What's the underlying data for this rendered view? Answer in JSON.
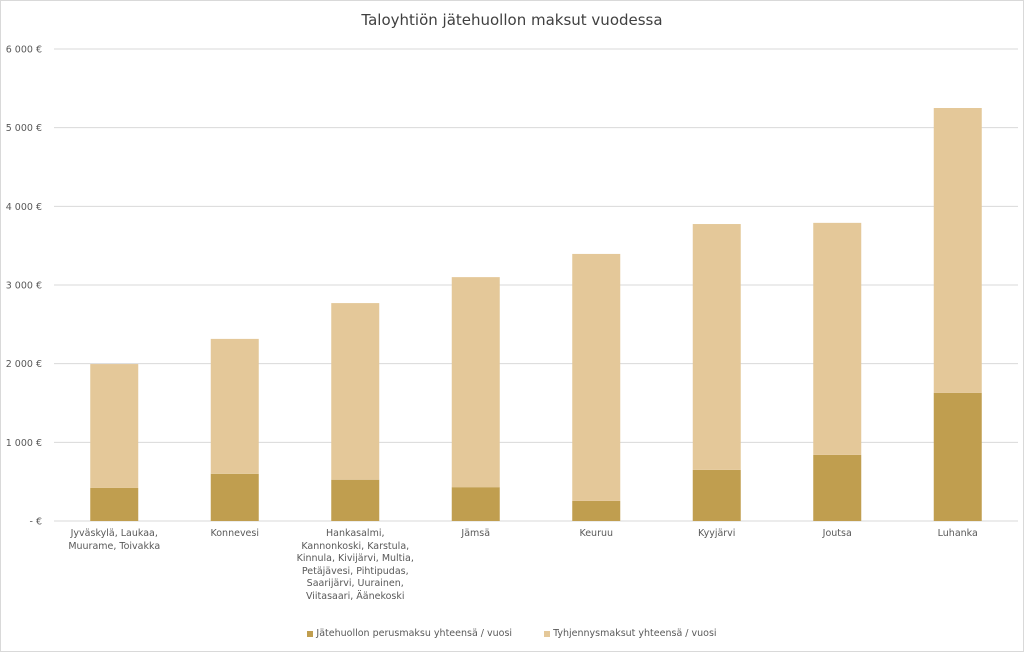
{
  "chart_data": {
    "type": "bar",
    "stacked": true,
    "title": "Taloyhtiön jätehuollon maksut vuodessa",
    "xlabel": "",
    "ylabel": "",
    "ylim": [
      0,
      6000
    ],
    "yticks": [
      0,
      1000,
      2000,
      3000,
      4000,
      5000,
      6000
    ],
    "ytick_labels": [
      "-   €",
      "1 000 €",
      "2 000 €",
      "3 000 €",
      "4 000 €",
      "5 000 €",
      "6 000 €"
    ],
    "grid": true,
    "legend_position": "bottom",
    "categories": [
      "Jyväskylä, Laukaa, Muurame, Toivakka",
      "Konnevesi",
      "Hankasalmi, Kannonkoski, Karstula, Kinnula, Kivijärvi, Multia, Petäjävesi, Pihtipudas, Saarijärvi, Uurainen, Viitasaari, Äänekoski",
      "Jämsä",
      "Keuruu",
      "Kyyjärvi",
      "Joutsa",
      "Luhanka"
    ],
    "series": [
      {
        "name": "Jätehuollon perusmaksu yhteensä / vuosi",
        "color": "#c09e4f",
        "values": [
          420,
          600,
          525,
          430,
          255,
          650,
          840,
          1630
        ]
      },
      {
        "name": "Tyhjennysmaksut yhteensä / vuosi",
        "color": "#e4c899",
        "values": [
          1575,
          1715,
          2245,
          2670,
          3140,
          3125,
          2950,
          3620
        ]
      }
    ]
  }
}
